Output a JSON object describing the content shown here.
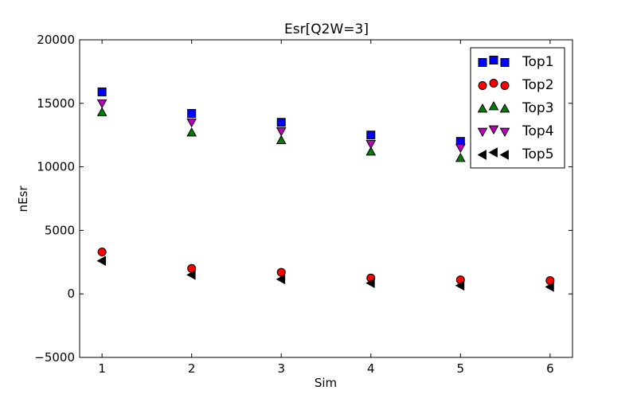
{
  "chart_data": {
    "type": "scatter",
    "title": "Esr[Q2W=3]",
    "xlabel": "Sim",
    "ylabel": "nEsr",
    "xlim": [
      0.75,
      6.25
    ],
    "ylim": [
      -5000,
      20000
    ],
    "xticks": [
      1,
      2,
      3,
      4,
      5,
      6
    ],
    "xtick_labels": [
      "1",
      "2",
      "3",
      "4",
      "5",
      "6"
    ],
    "yticks": [
      -5000,
      0,
      5000,
      10000,
      15000,
      20000
    ],
    "ytick_labels": [
      "−5000",
      "0",
      "5000",
      "10000",
      "15000",
      "20000"
    ],
    "grid": false,
    "legend_position": "top-right",
    "series": [
      {
        "name": "Top1",
        "marker": "square",
        "color": "#0000ff",
        "x": [
          1,
          2,
          3,
          4,
          5
        ],
        "y": [
          15900,
          14200,
          13500,
          12500,
          12000
        ]
      },
      {
        "name": "Top2",
        "marker": "circle",
        "color": "#ff0000",
        "x": [
          1,
          2,
          3,
          4,
          5,
          6
        ],
        "y": [
          3300,
          2000,
          1700,
          1250,
          1100,
          1050
        ]
      },
      {
        "name": "Top3",
        "marker": "triangle-up",
        "color": "#008000",
        "x": [
          1,
          2,
          3,
          4,
          5
        ],
        "y": [
          14300,
          12700,
          12100,
          11200,
          10700
        ]
      },
      {
        "name": "Top4",
        "marker": "triangle-down",
        "color": "#bf00bf",
        "x": [
          1,
          2,
          3,
          4,
          5
        ],
        "y": [
          15000,
          13500,
          12800,
          11800,
          11500
        ]
      },
      {
        "name": "Top5",
        "marker": "triangle-left",
        "color": "#000000",
        "x": [
          1,
          2,
          3,
          4,
          5,
          6
        ],
        "y": [
          2600,
          1500,
          1150,
          850,
          650,
          550
        ]
      }
    ]
  }
}
